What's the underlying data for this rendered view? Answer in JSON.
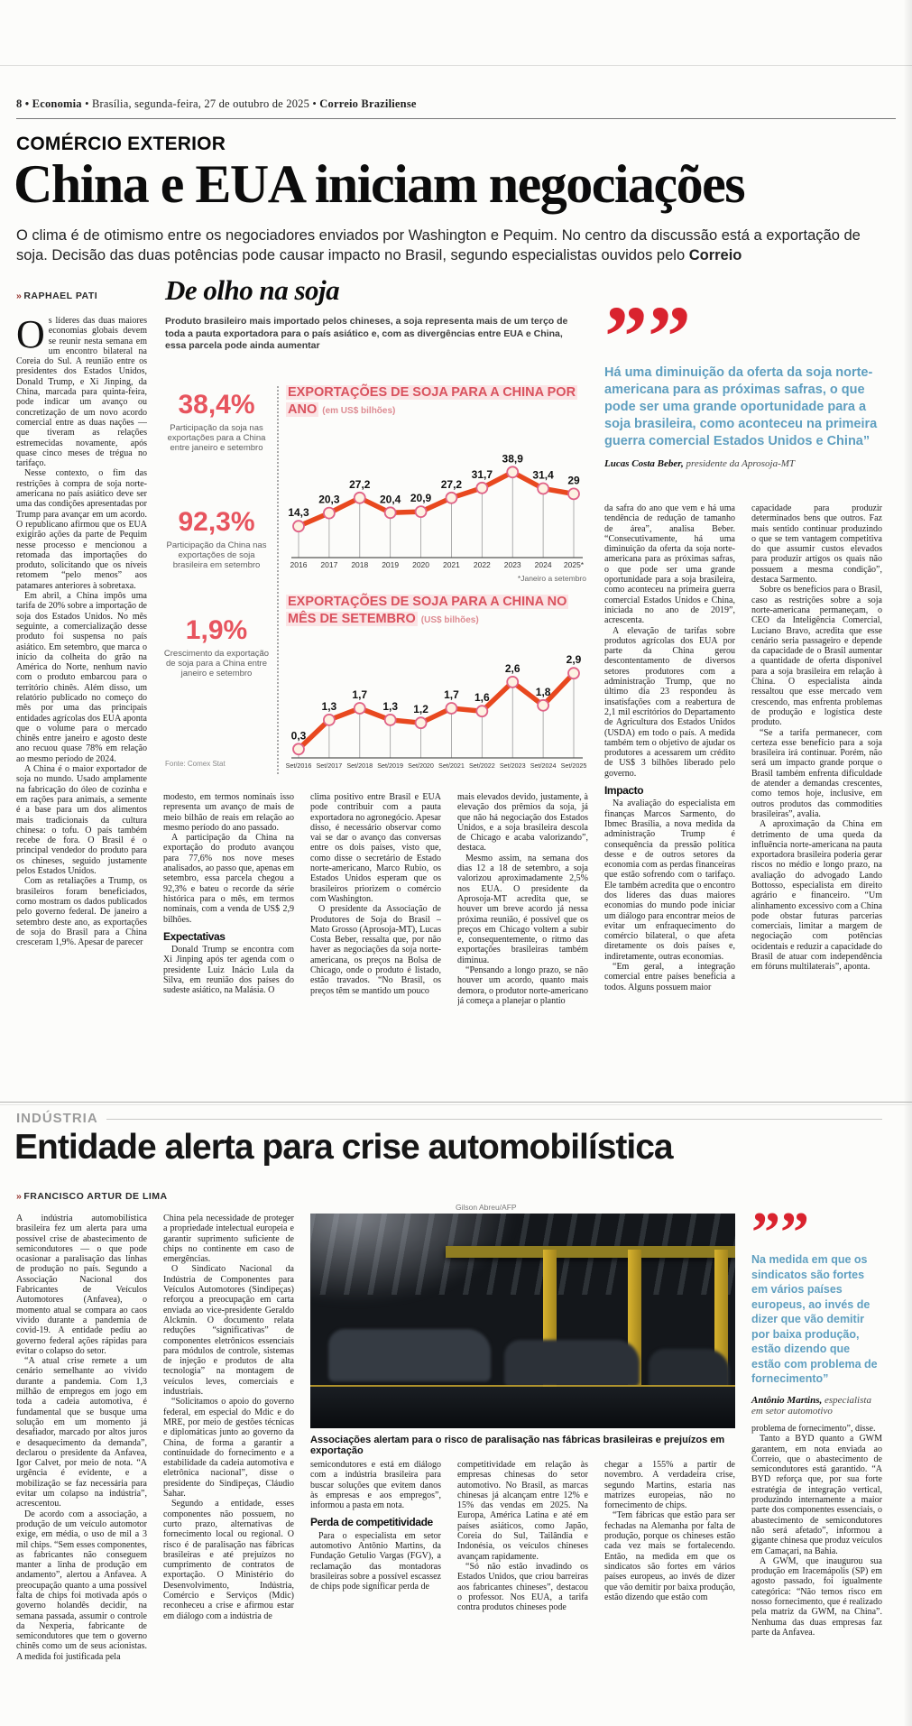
{
  "masthead": {
    "left_bold": "8 • Economia",
    "mid": " • Brasília, segunda-feira, 27 de outubro de 2025 • ",
    "paper_bold": "Correio Braziliense"
  },
  "article1": {
    "kicker": "COMÉRCIO EXTERIOR",
    "headline": "China e EUA iniciam negociações",
    "deck_plain": "O clima é de otimismo entre os negociadores enviados por Washington e Pequim. No centro da discussão está a exportação de soja. Decisão das duas potências pode causar impacto no Brasil, segundo especialistas ouvidos pelo ",
    "deck_bold": "Correio",
    "byline_prefix": "»",
    "byline": "RAPHAEL PATI",
    "col1": [
      {
        "drop": "O",
        "t": "s líderes das duas maiores economias globais devem se reunir nesta semana em um encontro bilateral na Coreia do Sul. A reunião entre os presidentes dos Estados Unidos, Donald Trump, e Xi Jinping, da China, marcada para quinta-feira, pode indicar um avanço ou concretização de um novo acordo comercial entre as duas nações — que tiveram as relações estremecidas novamente, após quase cinco meses de trégua no tarifaço."
      },
      {
        "t": "Nesse contexto, o fim das restrições à compra de soja norte-americana no país asiático deve ser uma das condições apresentadas por Trump para avançar em um acordo. O republicano afirmou que os EUA exigirão ações da parte de Pequim nesse processo e mencionou a retomada das importações do produto, solicitando que os níveis retomem “pelo menos” aos patamares anteriores à sobretaxa."
      },
      {
        "t": "Em abril, a China impôs uma tarifa de 20% sobre a importação de soja dos Estados Unidos. No mês seguinte, a comercialização desse produto foi suspensa no país asiático. Em setembro, que marca o início da colheita do grão na América do Norte, nenhum navio com o produto embarcou para o território chinês. Além disso, um relatório publicado no começo do mês por uma das principais entidades agrícolas dos EUA aponta que o volume para o mercado chinês entre janeiro e agosto deste ano recuou quase 78% em relação ao mesmo período de 2024."
      },
      {
        "t": "A China é o maior exportador de soja no mundo. Usado amplamente na fabricação do óleo de cozinha e em rações para animais, a semente é a base para um dos alimentos mais tradicionais da cultura chinesa: o tofu. O país também recebe de fora. O Brasil é o principal vendedor do produto para os chineses, seguido justamente pelos Estados Unidos."
      },
      {
        "t": "Com as retaliações a Trump, os brasileiros foram beneficiados, como mostram os dados publicados pelo governo federal. De janeiro a setembro deste ano, as exportações de soja do Brasil para a China cresceram 1,9%. Apesar de parecer"
      }
    ],
    "col2": [
      {
        "t": "modesto, em termos nominais isso representa um avanço de mais de meio bilhão de reais em relação ao mesmo período do ano passado.",
        "first": true
      },
      {
        "t": "A participação da China na exportação do produto avançou para 77,6% nos nove meses analisados, ao passo que, apenas em setembro, essa parcela chegou a 92,3% e bateu o recorde da série histórica para o mês, em termos nominais, com a venda de US$ 2,9 bilhões."
      },
      {
        "h": "Expectativas"
      },
      {
        "t": "Donald Trump se encontra com Xi Jinping após ter agenda com o presidente Luiz Inácio Lula da Silva, em reunião dos países do sudeste asiático, na Malásia. O"
      }
    ],
    "col3": [
      {
        "t": "clima positivo entre Brasil e EUA pode contribuir com a pauta exportadora no agronegócio. Apesar disso, é necessário observar como vai se dar o avanço das conversas entre os dois países, visto que, como disse o secretário de Estado norte-americano, Marco Rubio, os Estados Unidos esperam que os brasileiros priorizem o comércio com Washington.",
        "first": true
      },
      {
        "t": "O presidente da Associação de Produtores de Soja do Brasil – Mato Grosso (Aprosoja-MT), Lucas Costa Beber, ressalta que, por não haver as negociações da soja norte-americana, os preços na Bolsa de Chicago, onde o produto é listado, estão travados. “No Brasil, os preços têm se mantido um pouco"
      }
    ],
    "col4": [
      {
        "t": "mais elevados devido, justamente, à elevação dos prêmios da soja, já que não há negociação dos Estados Unidos, e a soja brasileira descola de Chicago e acaba valorizando”, destaca.",
        "first": true
      },
      {
        "t": "Mesmo assim, na semana dos dias 12 a 18 de setembro, a soja valorizou aproximadamente 2,5% nos EUA. O presidente da Aprosoja-MT acredita que, se houver um breve acordo já nessa próxima reunião, é possível que os preços em Chicago voltem a subir e, consequentemente, o ritmo das exportações brasileiras também diminua."
      },
      {
        "t": "“Pensando a longo prazo, se não houver um acordo, quanto mais demora, o produtor norte-americano já começa a planejar o plantio"
      }
    ],
    "col5": [
      {
        "t": "da safra do ano que vem e há uma tendência de redução de tamanho de área”, analisa Beber. “Consecutivamente, há uma diminuição da oferta da soja norte-americana para as próximas safras, o que pode ser uma grande oportunidade para a soja brasileira, como aconteceu na primeira guerra comercial Estados Unidos e China, iniciada no ano de 2019”, acrescenta.",
        "first": true
      },
      {
        "t": "A elevação de tarifas sobre produtos agrícolas dos EUA por parte da China gerou descontentamento de diversos setores produtores com a administração Trump, que no último dia 23 respondeu às insatisfações com a reabertura de 2,1 mil escritórios do Departamento de Agricultura dos Estados Unidos (USDA) em todo o país. A medida também tem o objetivo de ajudar os produtores a acessarem um crédito de US$ 3 bilhões liberado pelo governo."
      },
      {
        "h": "Impacto"
      },
      {
        "t": "Na avaliação do especialista em finanças Marcos Sarmento, do Ibmec Brasília, a nova medida da administração Trump é consequência da pressão política desse e de outros setores da economia com as perdas financeiras que estão sofrendo com o tarifaço. Ele também acredita que o encontro dos líderes das duas maiores economias do mundo pode iniciar um diálogo para encontrar meios de evitar um enfraquecimento do comércio bilateral, o que afeta diretamente os dois países e, indiretamente, outras economias."
      },
      {
        "t": "“Em geral, a integração comercial entre países beneficia a todos. Alguns possuem maior"
      }
    ],
    "col6": [
      {
        "t": "capacidade para produzir determinados bens que outros. Faz mais sentido continuar produzindo o que se tem vantagem competitiva do que assumir custos elevados para produzir artigos os quais não possuem a mesma condição”, destaca Sarmento.",
        "first": true
      },
      {
        "t": "Sobre os benefícios para o Brasil, caso as restrições sobre a soja norte-americana permaneçam, o CEO da Inteligência Comercial, Luciano Bravo, acredita que esse cenário seria passageiro e depende da capacidade de o Brasil aumentar a quantidade de oferta disponível para a soja brasileira em relação à China. O especialista ainda ressaltou que esse mercado vem crescendo, mas enfrenta problemas de produção e logística deste produto."
      },
      {
        "t": "“Se a tarifa permanecer, com certeza esse benefício para a soja brasileira irá continuar. Porém, não será um impacto grande porque o Brasil também enfrenta dificuldade de atender a demandas crescentes, como temos hoje, inclusive, em outros produtos das commodities brasileiras”, avalia."
      },
      {
        "t": "A aproximação da China em detrimento de uma queda da influência norte-americana na pauta exportadora brasileira poderia gerar riscos no médio e longo prazo, na avaliação do advogado Lando Bottosso, especialista em direito agrário e financeiro. “Um alinhamento excessivo com a China pode obstar futuras parcerias comerciais, limitar a margem de negociação com potências ocidentais e reduzir a capacidade do Brasil de atuar com independência em fóruns multilaterais”, aponta."
      }
    ],
    "quote": {
      "text": "Há uma diminuição da oferta da soja norte-americana para as próximas safras, o que pode ser uma grande oportunidade para a soja brasileira, como aconteceu na primeira guerra comercial Estados Unidos e China”",
      "name": "Lucas Costa Beber,",
      "role": " presidente da Aprosoja-MT"
    }
  },
  "infographic": {
    "title": "De olho na soja",
    "intro": "Produto brasileiro mais importado pelos chineses, a soja representa mais de um terço de toda a pauta exportadora para o país asiático e, com as divergências entre EUA e China, essa parcela pode ainda aumentar",
    "stats": [
      {
        "value": "38,4%",
        "label": "Participação da soja nas exportações para a China entre janeiro e setembro"
      },
      {
        "value": "92,3%",
        "label": "Participação da China nas exportações de soja brasileira em setembro"
      },
      {
        "value": "1,9%",
        "label": "Crescimento da exportação de soja para a China entre janeiro e setembro"
      }
    ],
    "source": "Fonte: Comex Stat"
  },
  "chart_data": [
    {
      "type": "line",
      "title": "EXPORTAÇÕES DE SOJA PARA A CHINA POR ANO",
      "unit": "(em US$ bilhões)",
      "categories": [
        "2016",
        "2017",
        "2018",
        "2019",
        "2020",
        "2021",
        "2022",
        "2023",
        "2024",
        "2025*"
      ],
      "values": [
        14.3,
        20.3,
        27.2,
        20.4,
        20.9,
        27.2,
        31.7,
        38.9,
        31.4,
        29
      ],
      "labels": [
        "14,3",
        "20,3",
        "27,2",
        "20,4",
        "20,9",
        "27,2",
        "31,7",
        "38,9",
        "31,4",
        "29"
      ],
      "note": "*Janeiro a setembro",
      "ylim": [
        0,
        46
      ],
      "grid": false,
      "line_color": "#e8481f",
      "marker_fill": "#fdf2e2",
      "marker_stroke": "#e06287"
    },
    {
      "type": "line",
      "title": "EXPORTAÇÕES DE SOJA PARA A CHINA NO MÊS DE SETEMBRO",
      "unit": "(US$ bilhões)",
      "categories": [
        "Set/2016",
        "Set/2017",
        "Set/2018",
        "Set/2019",
        "Set/2020",
        "Set/2021",
        "Set/2022",
        "Set/2023",
        "Set/2024",
        "Set/2025"
      ],
      "values": [
        0.3,
        1.3,
        1.7,
        1.3,
        1.2,
        1.7,
        1.6,
        2.6,
        1.8,
        2.9
      ],
      "labels": [
        "0,3",
        "1,3",
        "1,7",
        "1,3",
        "1,2",
        "1,7",
        "1,6",
        "2,6",
        "1,8",
        "2,9"
      ],
      "ylim": [
        0,
        3.4
      ],
      "grid": false,
      "line_color": "#e8481f",
      "marker_fill": "#fdf2e2",
      "marker_stroke": "#e06287"
    }
  ],
  "article2": {
    "kicker": "INDÚSTRIA",
    "headline": "Entidade alerta para crise automobilística",
    "byline_prefix": "»",
    "byline": "FRANCISCO ARTUR DE LIMA",
    "col1": [
      {
        "t": "A indústria automobilística brasileira fez um alerta para uma possível crise de abastecimento de semicondutores — o que pode ocasionar a paralisação das linhas de produção no país. Segundo a Associação Nacional dos Fabricantes de Veículos Automotores (Anfavea), o momento atual se compara ao caos vivido durante a pandemia de covid-19. A entidade pediu ao governo federal ações rápidas para evitar o colapso do setor.",
        "first": true
      },
      {
        "t": "“A atual crise remete a um cenário semelhante ao vivido durante a pandemia. Com 1,3 milhão de empregos em jogo em toda a cadeia automotiva, é fundamental que se busque uma solução em um momento já desafiador, marcado por altos juros e desaquecimento da demanda”, declarou o presidente da Anfavea, Igor Calvet, por meio de nota. “A urgência é evidente, e a mobilização se faz necessária para evitar um colapso na indústria”, acrescentou."
      },
      {
        "t": "De acordo com a associação, a produção de um veículo automotor exige, em média, o uso de mil a 3 mil chips. “Sem esses componentes, as fabricantes não conseguem manter a linha de produção em andamento”, alertou a Anfavea. A preocupação quanto a uma possível falta de chips foi motivada após o governo holandês decidir, na semana passada, assumir o controle da Nexperia, fabricante de semicondutores que tem o governo chinês como um de seus acionistas. A medida foi justificada pela"
      }
    ],
    "col2": [
      {
        "t": "China pela necessidade de proteger a propriedade intelectual europeia e garantir suprimento suficiente de chips no continente em caso de emergências.",
        "first": true
      },
      {
        "t": "O Sindicato Nacional da Indústria de Componentes para Veículos Automotores (Sindipeças) reforçou a preocupação em carta enviada ao vice-presidente Geraldo Alckmin. O documento relata reduções “significativas” de componentes eletrônicos essenciais para módulos de controle, sistemas de injeção e produtos de alta tecnologia” na montagem de veículos leves, comerciais e industriais."
      },
      {
        "t": "“Solicitamos o apoio do governo federal, em especial do Mdic e do MRE, por meio de gestões técnicas e diplomáticas junto ao governo da China, de forma a garantir a continuidade do fornecimento e a estabilidade da cadeia automotiva e eletrônica nacional”, disse o presidente do Sindipeças, Cláudio Sahar."
      },
      {
        "t": "Segundo a entidade, esses componentes não possuem, no curto prazo, alternativas de fornecimento local ou regional. O risco é de paralisação nas fábricas brasileiras e até prejuízos no cumprimento de contratos de exportação. O Ministério do Desenvolvimento, Indústria, Comércio e Serviços (Mdic) reconheceu a crise e afirmou estar em diálogo com a indústria de"
      }
    ],
    "col3": [
      {
        "t": "semicondutores e está em diálogo com a indústria brasileira para buscar soluções que evitem danos às empresas e aos empregos”, informou a pasta em nota.",
        "first": true
      },
      {
        "h": "Perda de competitividade"
      },
      {
        "t": "Para o especialista em setor automotivo Antônio Martins, da Fundação Getulio Vargas (FGV), a reclamação das montadoras brasileiras sobre a possível escassez de chips pode significar perda de"
      }
    ],
    "col4": [
      {
        "t": "competitividade em relação às empresas chinesas do setor automotivo. No Brasil, as marcas chinesas já alcançam entre 12% e 15% das vendas em 2025. Na Europa, América Latina e até em países asiáticos, como Japão, Coreia do Sul, Tailândia e Indonésia, os veículos chineses avançam rapidamente.",
        "first": true
      },
      {
        "t": "“Só não estão invadindo os Estados Unidos, que criou barreiras aos fabricantes chineses”, destacou o professor. Nos EUA, a tarifa contra produtos chineses pode"
      }
    ],
    "col5": [
      {
        "t": "chegar a 155% a partir de novembro. A verdadeira crise, segundo Martins, estaria nas matrizes europeias, não no fornecimento de chips.",
        "first": true
      },
      {
        "t": "“Tem fábricas que estão para ser fechadas na Alemanha por falta de produção, porque os chineses estão cada vez mais se fortalecendo. Então, na medida em que os sindicatos são fortes em vários países europeus, ao invés de dizer que vão demitir por baixa produção, estão dizendo que estão com"
      }
    ],
    "col6": [
      {
        "t": "problema de fornecimento”, disse.",
        "first": true
      },
      {
        "t": "Tanto a BYD quanto a GWM garantem, em nota enviada ao Correio, que o abastecimento de semicondutores está garantido. “A BYD reforça que, por sua forte estratégia de integração vertical, produzindo internamente a maior parte dos componentes essenciais, o abastecimento de semicondutores não será afetado”, informou a gigante chinesa que produz veículos em Camaçari, na Bahia."
      },
      {
        "t": "A GWM, que inaugurou sua produção em Iracemápolis (SP) em agosto passado, foi igualmente categórica: “Não temos risco em nosso fornecimento, que é realizado pela matriz da GWM, na China”. Nenhuma das duas empresas faz parte da Anfavea."
      }
    ],
    "quote": {
      "text": "Na medida em que os sindicatos são fortes em vários países europeus, ao invés de dizer que vão demitir por baixa produção, estão dizendo que estão com problema de fornecimento”",
      "name": "Antônio Martins,",
      "role": " especialista em setor automotivo"
    }
  },
  "photo": {
    "credit": "Gilson Abreu/AFP",
    "caption": "Associações alertam para o risco de paralisação nas fábricas brasileiras e prejuízos em exportação"
  },
  "colors": {
    "quote_mark_red": "#d9232e",
    "quote_text_blue": "#5f9fc0",
    "stat_red": "#e7545e",
    "chart_title_red": "#d9525e",
    "chart_line_orange": "#e8481f"
  }
}
